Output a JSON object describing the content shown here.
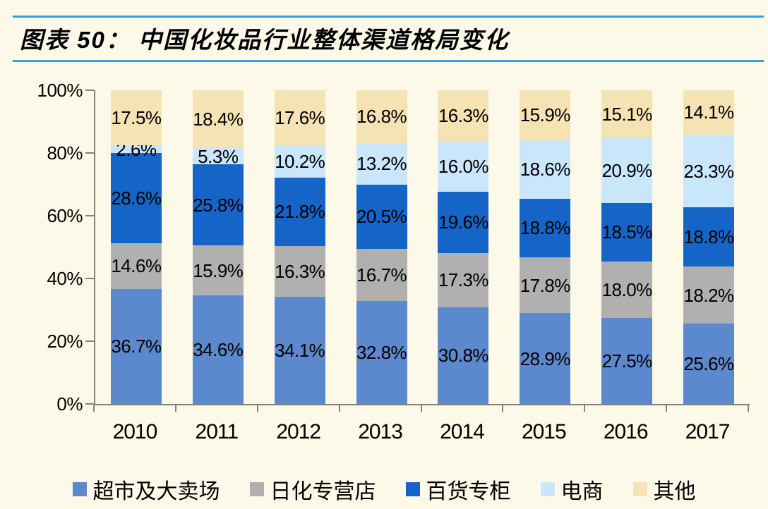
{
  "header": {
    "title": "图表 50： 中国化妆品行业整体渠道格局变化"
  },
  "colors": {
    "background": "#FDF9E9",
    "accent_rule": "#31A0DC",
    "axis": "#808080",
    "label_text": "#000000"
  },
  "chart_data": {
    "type": "bar",
    "stacked": true,
    "percent": true,
    "title": "中国化妆品行业整体渠道格局变化",
    "categories": [
      "2010",
      "2011",
      "2012",
      "2013",
      "2014",
      "2015",
      "2016",
      "2017"
    ],
    "series": [
      {
        "name": "超市及大卖场",
        "color": "#5C88CE",
        "values": [
          36.7,
          34.6,
          34.1,
          32.8,
          30.8,
          28.9,
          27.5,
          25.6
        ]
      },
      {
        "name": "日化专营店",
        "color": "#B0B0B0",
        "values": [
          14.6,
          15.9,
          16.3,
          16.7,
          17.3,
          17.8,
          18.0,
          18.2
        ]
      },
      {
        "name": "百货专柜",
        "color": "#1565C8",
        "values": [
          28.6,
          25.8,
          21.8,
          20.5,
          19.6,
          18.8,
          18.5,
          18.8
        ]
      },
      {
        "name": "电商",
        "color": "#C9E6FB",
        "values": [
          2.6,
          5.3,
          10.2,
          13.2,
          16.0,
          18.6,
          20.9,
          23.3
        ]
      },
      {
        "name": "其他",
        "color": "#F6E3B4",
        "values": [
          17.5,
          18.4,
          17.6,
          16.8,
          16.3,
          15.9,
          15.1,
          14.1
        ]
      }
    ],
    "ytick_labels": [
      "0%",
      "20%",
      "40%",
      "60%",
      "80%",
      "100%"
    ],
    "ylim": [
      0,
      100
    ],
    "grid": false,
    "legend_position": "bottom",
    "value_label_format": "{value}%"
  }
}
